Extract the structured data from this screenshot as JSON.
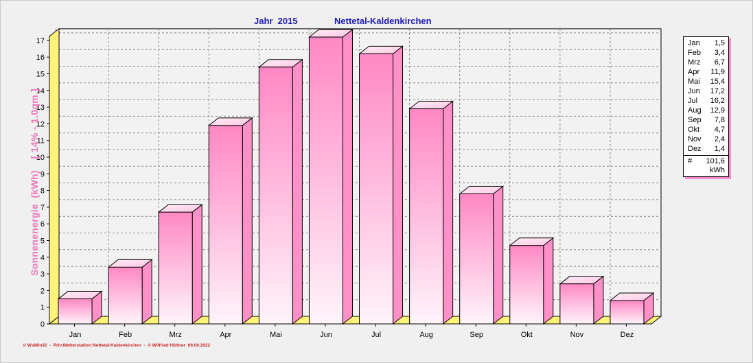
{
  "title": {
    "year_label": "Jahr  2015",
    "station": "Nettetal-Kaldenkirchen"
  },
  "chart_data": {
    "type": "bar",
    "categories": [
      "Jan",
      "Feb",
      "Mrz",
      "Apr",
      "Mai",
      "Jun",
      "Jul",
      "Aug",
      "Sep",
      "Okt",
      "Nov",
      "Dez"
    ],
    "values": [
      1.5,
      3.4,
      6.7,
      11.9,
      15.4,
      17.2,
      16.2,
      12.9,
      7.8,
      4.7,
      2.4,
      1.4
    ],
    "ylabel": "Sonnenenergie  (kWh)    [ 14% - 1.0qm ]",
    "ylim": [
      0,
      17
    ],
    "yticks": [
      "0",
      "1",
      "2",
      "3",
      "4",
      "5",
      "6",
      "7",
      "8",
      "9",
      "10",
      "11",
      "12",
      "13",
      "14",
      "15",
      "16",
      "17"
    ],
    "grid": true,
    "bar_colors": {
      "top": "#ff88c4",
      "bottom": "#fff4fa",
      "side": "#ff90c8",
      "cap": "#ffc6e2"
    },
    "floor_color": "#fff37a"
  },
  "legend": {
    "rows": [
      {
        "month": "Jan",
        "value": "1,5"
      },
      {
        "month": "Feb",
        "value": "3,4"
      },
      {
        "month": "Mrz",
        "value": "6,7"
      },
      {
        "month": "Apr",
        "value": "11,9"
      },
      {
        "month": "Mai",
        "value": "15,4"
      },
      {
        "month": "Jun",
        "value": "17,2"
      },
      {
        "month": "Jul",
        "value": "16,2"
      },
      {
        "month": "Aug",
        "value": "12,9"
      },
      {
        "month": "Sep",
        "value": "7,8"
      },
      {
        "month": "Okt",
        "value": "4,7"
      },
      {
        "month": "Nov",
        "value": "2,4"
      },
      {
        "month": "Dez",
        "value": "1,4"
      }
    ],
    "total_symbol": "#",
    "total_value": "101,6",
    "total_unit": "kWh"
  },
  "footer": "© WsWin32  -  Priv.Wetterstation:Nettetal-Kaldenkirchen  -  © Wilfried Hültner  06.06.2022"
}
